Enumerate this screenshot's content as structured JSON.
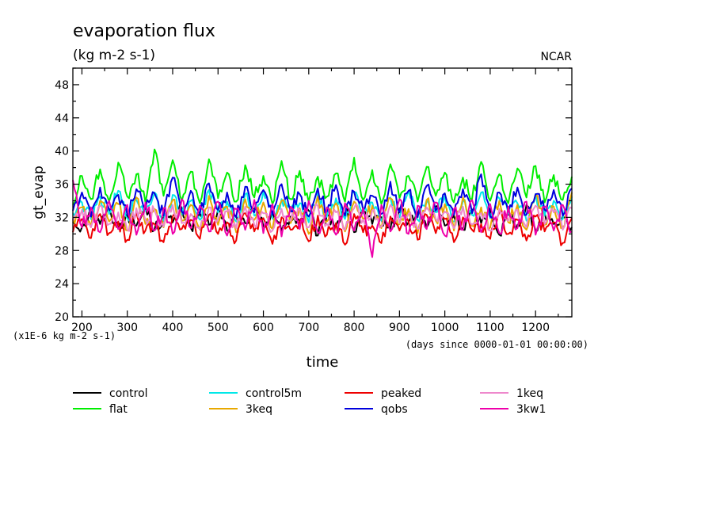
{
  "chart_data": {
    "type": "line",
    "title": "evaporation flux",
    "subtitle": "(kg m-2 s-1)",
    "source_label": "NCAR",
    "ylabel": "gt_evap",
    "y_scale_note": "(x1E-6 kg m-2 s-1)",
    "xlabel": "time",
    "x_units_note": "(days since 0000-01-01 00:00:00)",
    "xlim": [
      180,
      1280
    ],
    "ylim": [
      20,
      50
    ],
    "x_ticks": [
      200,
      300,
      400,
      500,
      600,
      700,
      800,
      900,
      1000,
      1100,
      1200
    ],
    "y_ticks": [
      20,
      24,
      28,
      32,
      36,
      40,
      44,
      48
    ],
    "grid": false,
    "legend_position": "bottom",
    "x": [
      180,
      200,
      220,
      240,
      260,
      280,
      300,
      320,
      340,
      360,
      380,
      400,
      420,
      440,
      460,
      480,
      500,
      520,
      540,
      560,
      580,
      600,
      620,
      640,
      660,
      680,
      700,
      720,
      740,
      760,
      780,
      800,
      820,
      840,
      860,
      880,
      900,
      920,
      940,
      960,
      980,
      1000,
      1020,
      1040,
      1060,
      1080,
      1100,
      1120,
      1140,
      1160,
      1180,
      1200,
      1220,
      1240,
      1260,
      1280
    ],
    "series": [
      {
        "name": "control",
        "color": "#000000",
        "values": [
          31.5,
          30.8,
          32.6,
          31.2,
          33.0,
          30.6,
          32.4,
          31.0,
          33.2,
          30.5,
          32.0,
          31.4,
          33.1,
          30.7,
          32.5,
          31.1,
          32.9,
          30.4,
          32.2,
          31.3,
          33.0,
          30.9,
          32.7,
          30.3,
          32.1,
          31.6,
          32.8,
          29.8,
          32.3,
          31.0,
          33.4,
          30.2,
          32.6,
          31.2,
          32.0,
          30.6,
          33.1,
          31.4,
          32.5,
          30.8,
          33.3,
          31.0,
          32.2,
          30.5,
          32.8,
          31.3,
          33.0,
          29.9,
          32.4,
          31.1,
          33.5,
          30.4,
          32.6,
          31.2,
          32.1,
          30.8
        ]
      },
      {
        "name": "flat",
        "color": "#00ee00",
        "values": [
          33.5,
          37.0,
          34.2,
          37.8,
          33.9,
          38.6,
          34.5,
          37.2,
          33.8,
          40.2,
          34.6,
          38.9,
          34.0,
          37.5,
          33.7,
          39.0,
          34.3,
          37.4,
          33.9,
          38.3,
          34.4,
          37.0,
          33.6,
          38.8,
          34.2,
          37.6,
          33.8,
          36.9,
          34.5,
          37.3,
          33.9,
          39.2,
          34.1,
          37.7,
          33.6,
          38.4,
          34.3,
          37.0,
          33.9,
          38.1,
          34.6,
          37.4,
          33.8,
          36.8,
          34.2,
          38.7,
          34.0,
          37.2,
          33.7,
          37.9,
          34.4,
          38.2,
          33.8,
          37.1,
          34.1,
          36.9
        ]
      },
      {
        "name": "control5m",
        "color": "#00e8e8",
        "values": [
          32.5,
          33.8,
          31.8,
          34.5,
          32.4,
          35.2,
          31.9,
          34.1,
          32.8,
          35.0,
          31.6,
          34.7,
          32.3,
          34.0,
          31.7,
          35.3,
          32.6,
          33.9,
          31.5,
          34.8,
          32.2,
          35.1,
          31.9,
          34.2,
          32.7,
          33.7,
          31.4,
          34.9,
          32.1,
          34.3,
          31.8,
          35.0,
          32.5,
          33.8,
          31.6,
          34.4,
          32.0,
          35.2,
          31.7,
          34.1,
          32.6,
          34.6,
          31.5,
          33.9,
          32.3,
          35.0,
          31.9,
          34.3,
          32.4,
          33.7,
          31.6,
          34.8,
          32.2,
          34.0,
          31.8,
          34.5
        ]
      },
      {
        "name": "3keq",
        "color": "#e8a800",
        "values": [
          31.8,
          33.2,
          30.9,
          34.0,
          31.5,
          33.6,
          30.4,
          34.4,
          31.2,
          33.0,
          30.8,
          34.1,
          31.6,
          33.5,
          30.5,
          34.6,
          31.1,
          33.3,
          30.2,
          34.2,
          31.7,
          33.8,
          30.6,
          34.0,
          31.3,
          33.1,
          30.0,
          34.5,
          31.5,
          33.7,
          30.3,
          33.9,
          31.8,
          33.4,
          30.7,
          34.3,
          31.2,
          33.0,
          30.1,
          34.1,
          31.6,
          33.6,
          30.4,
          34.4,
          31.0,
          33.2,
          30.8,
          34.0,
          31.4,
          33.5,
          30.5,
          34.6,
          31.1,
          33.3,
          30.9,
          35.0
        ]
      },
      {
        "name": "peaked",
        "color": "#ee0000",
        "values": [
          30.2,
          31.8,
          29.5,
          32.4,
          30.1,
          31.5,
          29.3,
          32.6,
          30.4,
          31.2,
          29.0,
          32.1,
          30.6,
          31.7,
          29.4,
          32.3,
          30.0,
          31.4,
          29.2,
          32.5,
          30.3,
          31.9,
          28.8,
          32.0,
          30.5,
          31.6,
          29.1,
          32.2,
          29.9,
          31.3,
          28.7,
          32.4,
          30.2,
          31.0,
          28.9,
          32.1,
          30.4,
          31.5,
          29.3,
          32.3,
          30.1,
          31.8,
          29.0,
          32.0,
          30.5,
          31.2,
          29.4,
          32.6,
          30.0,
          31.7,
          29.2,
          32.1,
          30.3,
          31.4,
          28.9,
          31.9
        ]
      },
      {
        "name": "qobs",
        "color": "#0000dd",
        "values": [
          32.8,
          35.0,
          32.1,
          35.6,
          32.9,
          34.7,
          32.3,
          35.4,
          33.0,
          34.9,
          32.2,
          36.8,
          32.7,
          35.2,
          32.4,
          36.1,
          32.9,
          35.0,
          32.0,
          35.7,
          32.6,
          35.3,
          32.3,
          36.0,
          32.8,
          34.8,
          32.1,
          35.5,
          32.7,
          35.9,
          32.2,
          35.1,
          32.9,
          34.6,
          32.4,
          36.3,
          32.6,
          35.2,
          32.0,
          35.8,
          32.8,
          34.9,
          32.3,
          35.4,
          32.5,
          37.2,
          32.1,
          35.0,
          32.7,
          35.6,
          32.3,
          34.8,
          32.9,
          35.3,
          32.2,
          35.5
        ]
      },
      {
        "name": "1keq",
        "color": "#ee88cc",
        "values": [
          31.6,
          32.9,
          30.8,
          33.4,
          31.2,
          32.6,
          30.5,
          33.1,
          31.7,
          32.8,
          30.9,
          33.5,
          31.3,
          32.4,
          30.6,
          33.2,
          31.8,
          32.7,
          30.7,
          33.3,
          31.1,
          32.5,
          30.4,
          33.0,
          31.6,
          32.9,
          30.8,
          33.4,
          31.2,
          32.6,
          30.5,
          33.1,
          31.7,
          32.8,
          30.9,
          33.5,
          31.3,
          32.4,
          30.6,
          33.2,
          31.8,
          32.7,
          30.7,
          33.3,
          31.1,
          32.5,
          30.4,
          33.0,
          31.6,
          32.9,
          30.8,
          33.4,
          31.2,
          32.6,
          30.5,
          33.1
        ]
      },
      {
        "name": "3kw1",
        "color": "#ee00aa",
        "values": [
          36.5,
          30.8,
          33.2,
          30.2,
          34.0,
          30.6,
          33.5,
          29.9,
          33.8,
          30.4,
          33.1,
          30.0,
          34.2,
          30.7,
          33.4,
          30.3,
          33.9,
          29.8,
          33.0,
          30.5,
          34.1,
          30.1,
          33.6,
          29.7,
          33.3,
          30.6,
          34.0,
          30.2,
          33.2,
          29.9,
          33.7,
          30.4,
          33.1,
          27.2,
          33.5,
          30.3,
          34.2,
          30.0,
          33.4,
          30.6,
          33.8,
          29.8,
          33.0,
          30.5,
          34.1,
          30.2,
          33.6,
          30.1,
          33.3,
          30.7,
          33.9,
          29.9,
          33.2,
          30.4,
          33.5,
          30.3
        ]
      }
    ]
  }
}
